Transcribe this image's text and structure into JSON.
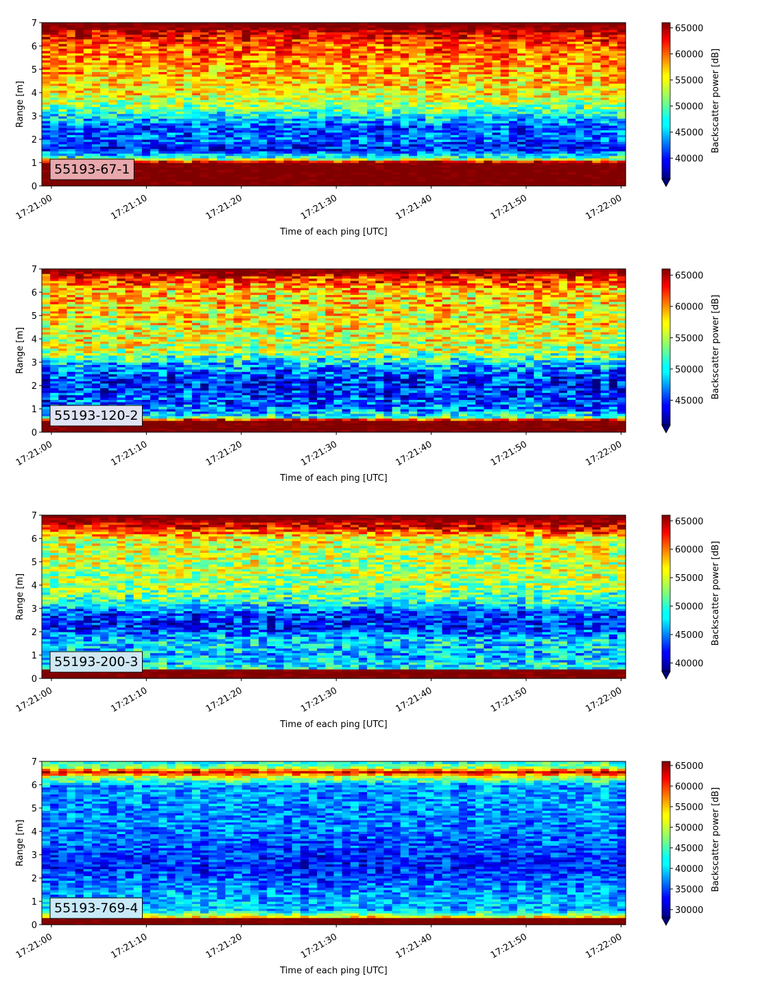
{
  "chart_data": [
    {
      "type": "heatmap",
      "label": "55193-67-1",
      "label_bg": "#e8a8ac",
      "xlabel": "Time of each ping [UTC]",
      "ylabel": "Range [m]",
      "x_ticks": [
        "17:21:00",
        "17:21:10",
        "17:21:20",
        "17:21:30",
        "17:21:40",
        "17:21:50",
        "17:22:00"
      ],
      "y_ticks": [
        0,
        1,
        2,
        3,
        4,
        5,
        6,
        7
      ],
      "ylim": [
        0,
        7
      ],
      "colorbar": {
        "label": "Backscatter power [dB]",
        "vmin": 36000,
        "vmax": 66000,
        "ticks": [
          40000,
          45000,
          50000,
          55000,
          60000,
          65000
        ]
      },
      "profile": [
        {
          "range": 0.0,
          "value": 66000
        },
        {
          "range": 0.25,
          "value": 66000
        },
        {
          "range": 1.0,
          "value": 66000
        },
        {
          "range": 1.2,
          "value": 49000
        },
        {
          "range": 1.6,
          "value": 40000
        },
        {
          "range": 2.0,
          "value": 43000
        },
        {
          "range": 2.5,
          "value": 42000
        },
        {
          "range": 3.0,
          "value": 47000
        },
        {
          "range": 3.4,
          "value": 51000
        },
        {
          "range": 4.0,
          "value": 55000
        },
        {
          "range": 5.0,
          "value": 57500
        },
        {
          "range": 6.0,
          "value": 59500
        },
        {
          "range": 6.5,
          "value": 63000
        },
        {
          "range": 7.0,
          "value": 66000
        }
      ]
    },
    {
      "type": "heatmap",
      "label": "55193-120-2",
      "label_bg": "#dfe3f3",
      "xlabel": "Time of each ping [UTC]",
      "ylabel": "Range [m]",
      "x_ticks": [
        "17:21:00",
        "17:21:10",
        "17:21:20",
        "17:21:30",
        "17:21:40",
        "17:21:50",
        "17:22:00"
      ],
      "y_ticks": [
        0,
        1,
        2,
        3,
        4,
        5,
        6,
        7
      ],
      "ylim": [
        0,
        7
      ],
      "colorbar": {
        "label": "Backscatter power [dB]",
        "vmin": 41000,
        "vmax": 66000,
        "ticks": [
          45000,
          50000,
          55000,
          60000,
          65000
        ]
      },
      "profile": [
        {
          "range": 0.0,
          "value": 66000
        },
        {
          "range": 0.5,
          "value": 66000
        },
        {
          "range": 0.65,
          "value": 52000
        },
        {
          "range": 1.0,
          "value": 47000
        },
        {
          "range": 2.0,
          "value": 44500
        },
        {
          "range": 2.6,
          "value": 46500
        },
        {
          "range": 3.0,
          "value": 49500
        },
        {
          "range": 3.5,
          "value": 55000
        },
        {
          "range": 5.0,
          "value": 57000
        },
        {
          "range": 6.0,
          "value": 57500
        },
        {
          "range": 6.6,
          "value": 62000
        },
        {
          "range": 7.0,
          "value": 66000
        }
      ]
    },
    {
      "type": "heatmap",
      "label": "55193-200-3",
      "label_bg": "#cfe8f3",
      "xlabel": "Time of each ping [UTC]",
      "ylabel": "Range [m]",
      "x_ticks": [
        "17:21:00",
        "17:21:10",
        "17:21:20",
        "17:21:30",
        "17:21:40",
        "17:21:50",
        "17:22:00"
      ],
      "y_ticks": [
        0,
        1,
        2,
        3,
        4,
        5,
        6,
        7
      ],
      "ylim": [
        0,
        7
      ],
      "colorbar": {
        "label": "Backscatter power [dB]",
        "vmin": 38500,
        "vmax": 66000,
        "ticks": [
          40000,
          45000,
          50000,
          55000,
          60000,
          65000
        ]
      },
      "profile": [
        {
          "range": 0.0,
          "value": 66000
        },
        {
          "range": 0.35,
          "value": 66000
        },
        {
          "range": 0.45,
          "value": 49000
        },
        {
          "range": 1.0,
          "value": 47000
        },
        {
          "range": 1.6,
          "value": 48000
        },
        {
          "range": 2.2,
          "value": 42500
        },
        {
          "range": 2.8,
          "value": 43500
        },
        {
          "range": 3.3,
          "value": 50000
        },
        {
          "range": 4.0,
          "value": 53000
        },
        {
          "range": 5.0,
          "value": 54000
        },
        {
          "range": 6.0,
          "value": 55000
        },
        {
          "range": 6.5,
          "value": 63000
        },
        {
          "range": 7.0,
          "value": 66000
        }
      ]
    },
    {
      "type": "heatmap",
      "label": "55193-769-4",
      "label_bg": "#c8e9f8",
      "xlabel": "Time of each ping [UTC]",
      "ylabel": "Range [m]",
      "x_ticks": [
        "17:21:00",
        "17:21:10",
        "17:21:20",
        "17:21:30",
        "17:21:40",
        "17:21:50",
        "17:22:00"
      ],
      "y_ticks": [
        0,
        1,
        2,
        3,
        4,
        5,
        6,
        7
      ],
      "ylim": [
        0,
        7
      ],
      "colorbar": {
        "label": "Backscatter power [dB]",
        "vmin": 28000,
        "vmax": 66000,
        "ticks": [
          30000,
          35000,
          40000,
          45000,
          50000,
          55000,
          60000,
          65000
        ]
      },
      "profile": [
        {
          "range": 0.0,
          "value": 66000
        },
        {
          "range": 0.25,
          "value": 66000
        },
        {
          "range": 0.35,
          "value": 52000
        },
        {
          "range": 0.6,
          "value": 40000
        },
        {
          "range": 1.5,
          "value": 38000
        },
        {
          "range": 2.5,
          "value": 33500
        },
        {
          "range": 3.0,
          "value": 34500
        },
        {
          "range": 4.0,
          "value": 37000
        },
        {
          "range": 5.0,
          "value": 38000
        },
        {
          "range": 6.0,
          "value": 38500
        },
        {
          "range": 6.35,
          "value": 50000
        },
        {
          "range": 6.55,
          "value": 62000
        },
        {
          "range": 6.75,
          "value": 48000
        },
        {
          "range": 7.0,
          "value": 42000
        }
      ]
    }
  ]
}
